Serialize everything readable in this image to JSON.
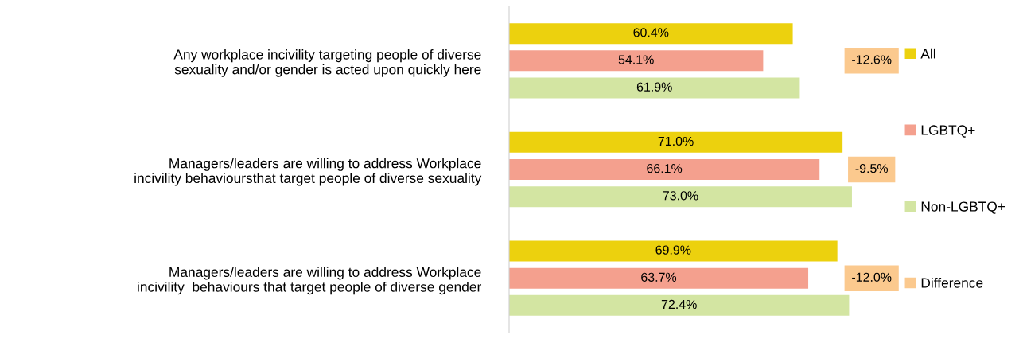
{
  "chart_data": {
    "type": "bar",
    "orientation": "horizontal",
    "categories": [
      "Any workplace incivility targeting people of diverse\nsexuality and/or gender is acted upon quickly here",
      "Managers/leaders are willing to address Workplace\nincivility behavioursthat target people of diverse sexuality",
      "Managers/leaders are willing to address Workplace\nincivility  behaviours that target people of diverse gender"
    ],
    "series": [
      {
        "name": "All",
        "color": "#ecd10e",
        "values": [
          60.4,
          71.0,
          69.9
        ],
        "value_labels": [
          "60.4%",
          "71.0%",
          "69.9%"
        ]
      },
      {
        "name": "LGBTQ+",
        "color": "#f4a08e",
        "values": [
          54.1,
          66.1,
          63.7
        ],
        "value_labels": [
          "54.1%",
          "66.1%",
          "63.7%"
        ]
      },
      {
        "name": "Non-LGBTQ+",
        "color": "#d3e5a2",
        "values": [
          61.9,
          73.0,
          72.4
        ],
        "value_labels": [
          "61.9%",
          "73.0%",
          "72.4%"
        ]
      },
      {
        "name": "Difference",
        "type": "other",
        "color": "#fbc98e",
        "values": [
          null,
          null,
          null
        ],
        "value_labels": [
          "-12.6%",
          "-9.5%",
          "-12.0%"
        ]
      }
    ],
    "tick_labels": "y",
    "legend": "right",
    "grid": false
  }
}
